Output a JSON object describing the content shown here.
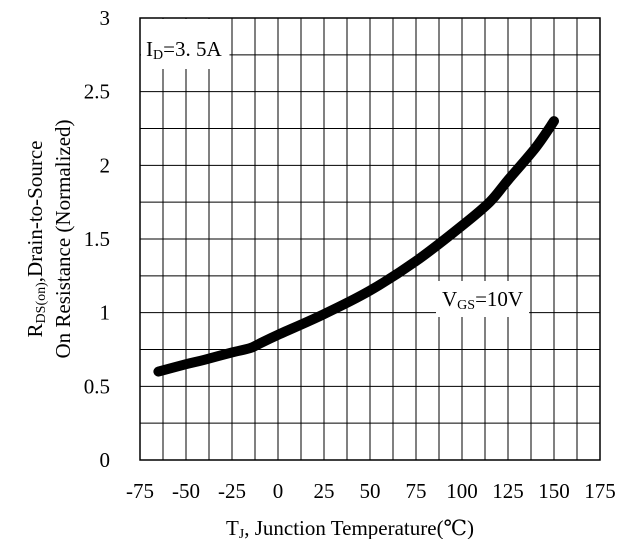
{
  "chart_data": {
    "type": "line",
    "title": "",
    "xlabel": "T",
    "xlabel_sub": "J",
    "xlabel_rest": ", Junction Temperature(℃)",
    "ylabel_line1_main": "R",
    "ylabel_line1_sub": "DS(on)",
    "ylabel_line1_rest": ",Drain-to-Source",
    "ylabel_line2": "On Resistance (Normalized)",
    "xlim": [
      -75,
      175
    ],
    "ylim": [
      0,
      3
    ],
    "x_ticks": [
      -75,
      -50,
      -25,
      0,
      25,
      50,
      75,
      100,
      125,
      150,
      175
    ],
    "y_ticks": [
      0,
      0.5,
      1,
      1.5,
      2,
      2.5,
      3
    ],
    "x_tick_labels": [
      "-75",
      "-50",
      "-25",
      "0",
      "25",
      "50",
      "75",
      "100",
      "125",
      "150",
      "175"
    ],
    "y_tick_labels": [
      "0",
      "0.5",
      "1",
      "1.5",
      "2",
      "2.5",
      "3"
    ],
    "grid": true,
    "x_grid_step": 12.5,
    "y_grid_step": 0.25,
    "annotations": {
      "id_main": "I",
      "id_sub": "D",
      "id_rest": "=3. 5A",
      "vgs_main": "V",
      "vgs_sub": "GS",
      "vgs_rest": "=10V"
    },
    "series": [
      {
        "color": "#000000",
        "x": [
          -65,
          -50,
          -40,
          -25,
          -15,
          -10,
          0,
          25,
          50,
          75,
          100,
          115,
          125,
          140,
          150
        ],
        "y": [
          0.6,
          0.65,
          0.68,
          0.73,
          0.76,
          0.79,
          0.85,
          0.99,
          1.15,
          1.35,
          1.59,
          1.75,
          1.9,
          2.12,
          2.3
        ]
      }
    ]
  }
}
